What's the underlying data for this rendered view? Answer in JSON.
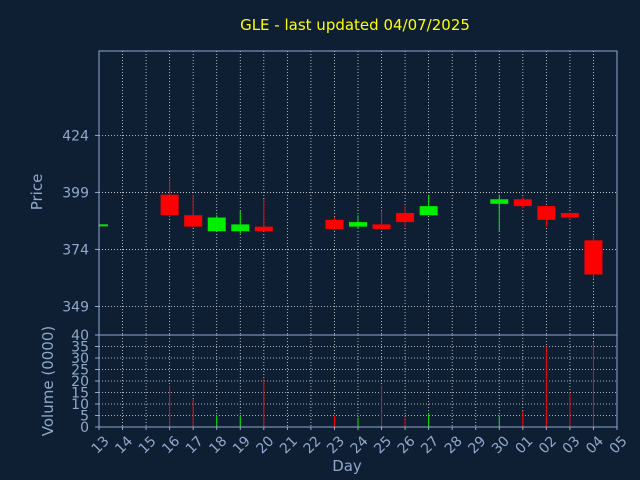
{
  "chart_data": [
    {
      "type": "candlestick",
      "title": "GLE - last updated 04/07/2025",
      "ylabel": "Price",
      "xlabel": "Day",
      "ylim": [
        336.5,
        461
      ],
      "yticks": [
        424,
        399,
        374,
        349
      ],
      "grid": true,
      "x_categories": [
        "13",
        "14",
        "15",
        "16",
        "17",
        "18",
        "19",
        "20",
        "21",
        "22",
        "23",
        "24",
        "25",
        "26",
        "27",
        "28",
        "29",
        "30",
        "01",
        "02",
        "03",
        "04",
        "05"
      ],
      "colors": {
        "up": "#00ee00",
        "down": "#ff0000",
        "grid": "#ffffff",
        "axis": "#8fa8cc",
        "background": "#0f1f33",
        "title": "#ffff00"
      },
      "candles": [
        {
          "x": "13",
          "open": 385,
          "high": 385,
          "low": 385,
          "close": 385
        },
        {
          "x": "16",
          "open": 398,
          "high": 405,
          "low": 388,
          "close": 389
        },
        {
          "x": "17",
          "open": 389,
          "high": 398,
          "low": 384,
          "close": 384
        },
        {
          "x": "18",
          "open": 382,
          "high": 389,
          "low": 382,
          "close": 388
        },
        {
          "x": "19",
          "open": 382,
          "high": 391,
          "low": 381,
          "close": 385
        },
        {
          "x": "20",
          "open": 384,
          "high": 396,
          "low": 382,
          "close": 382
        },
        {
          "x": "23",
          "open": 387,
          "high": 388,
          "low": 383,
          "close": 383
        },
        {
          "x": "24",
          "open": 384,
          "high": 389,
          "low": 383,
          "close": 386
        },
        {
          "x": "25",
          "open": 385,
          "high": 391,
          "low": 383,
          "close": 383
        },
        {
          "x": "26",
          "open": 390,
          "high": 393,
          "low": 384,
          "close": 386
        },
        {
          "x": "27",
          "open": 389,
          "high": 398,
          "low": 389,
          "close": 393
        },
        {
          "x": "30",
          "open": 394,
          "high": 398,
          "low": 382,
          "close": 396
        },
        {
          "x": "01",
          "open": 396,
          "high": 397,
          "low": 392,
          "close": 393
        },
        {
          "x": "02",
          "open": 393,
          "high": 393,
          "low": 384,
          "close": 387
        },
        {
          "x": "03",
          "open": 390,
          "high": 390,
          "low": 387,
          "close": 388
        },
        {
          "x": "04",
          "open": 378,
          "high": 380,
          "low": 361,
          "close": 363
        }
      ]
    },
    {
      "type": "bar",
      "ylabel": "Volume (0000)",
      "ylim": [
        0,
        40
      ],
      "yticks": [
        40,
        35,
        30,
        25,
        20,
        15,
        10,
        5,
        0
      ],
      "grid": true,
      "x_categories": [
        "13",
        "14",
        "15",
        "16",
        "17",
        "18",
        "19",
        "20",
        "21",
        "22",
        "23",
        "24",
        "25",
        "26",
        "27",
        "28",
        "29",
        "30",
        "01",
        "02",
        "03",
        "04",
        "05"
      ],
      "bars": [
        {
          "x": "13",
          "value": 0,
          "dir": "up"
        },
        {
          "x": "16",
          "value": 18,
          "dir": "down"
        },
        {
          "x": "17",
          "value": 12,
          "dir": "down"
        },
        {
          "x": "18",
          "value": 5,
          "dir": "up"
        },
        {
          "x": "19",
          "value": 5,
          "dir": "up"
        },
        {
          "x": "20",
          "value": 21,
          "dir": "down"
        },
        {
          "x": "23",
          "value": 5,
          "dir": "down"
        },
        {
          "x": "24",
          "value": 4,
          "dir": "up"
        },
        {
          "x": "25",
          "value": 18,
          "dir": "down"
        },
        {
          "x": "26",
          "value": 4,
          "dir": "down"
        },
        {
          "x": "27",
          "value": 6,
          "dir": "up"
        },
        {
          "x": "30",
          "value": 5,
          "dir": "up"
        },
        {
          "x": "01",
          "value": 7,
          "dir": "down"
        },
        {
          "x": "02",
          "value": 35,
          "dir": "down"
        },
        {
          "x": "03",
          "value": 15,
          "dir": "down"
        },
        {
          "x": "04",
          "value": 37,
          "dir": "down"
        }
      ]
    }
  ]
}
